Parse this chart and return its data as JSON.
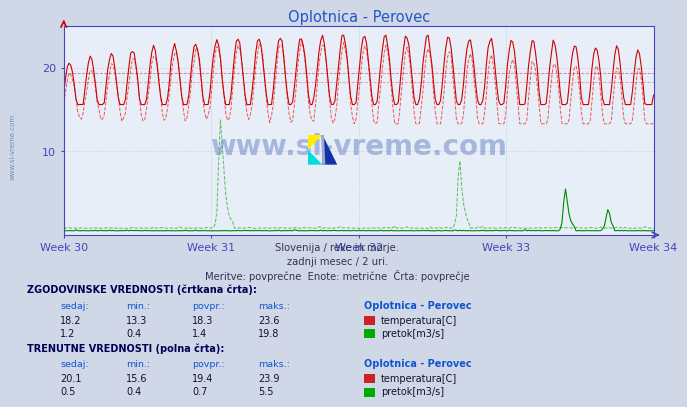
{
  "title": "Oplotnica - Perovec",
  "bg_color": "#d0d8e8",
  "plot_bg_color": "#e8eef8",
  "grid_color": "#b8bece",
  "title_color": "#2255cc",
  "axis_color": "#4444bb",
  "tick_color": "#2255cc",
  "subtitle_lines": [
    "Slovenija / reke in morje.",
    "zadnji mesec / 2 uri.",
    "Meritve: povprečne  Enote: metrične  Črta: povprečje"
  ],
  "xlabel_weeks": [
    "Week 30",
    "Week 31",
    "Week 32",
    "Week 33",
    "Week 34"
  ],
  "ymin": 0,
  "ymax": 25,
  "yticks": [
    10,
    20
  ],
  "n_points": 336,
  "temp_solid_color": "#cc0000",
  "temp_dash_color": "#ee4444",
  "flow_solid_color": "#008800",
  "flow_dash_color": "#44bb44",
  "watermark_text": "www.si-vreme.com",
  "watermark_color": "#5577bb",
  "watermark_alpha": 0.45,
  "legend_section1": "ZGODOVINSKE VREDNOSTI (črtkana črta):",
  "legend_section2": "TRENUTNE VREDNOSTI (polna črta):",
  "legend_cols": [
    "sedaj:",
    "min.:",
    "povpr.:",
    "maks.:"
  ],
  "legend_header": "Oplotnica - Perovec",
  "hist_temp": [
    18.2,
    13.3,
    18.3,
    23.6
  ],
  "hist_flow": [
    1.2,
    0.4,
    1.4,
    19.8
  ],
  "curr_temp": [
    20.1,
    15.6,
    19.4,
    23.9
  ],
  "curr_flow": [
    0.5,
    0.4,
    0.7,
    5.5
  ],
  "temp_label": "temperatura[C]",
  "flow_label": "pretok[m3/s]",
  "sidebar_text": "www.si-vreme.com",
  "sidebar_color": "#4477aa"
}
